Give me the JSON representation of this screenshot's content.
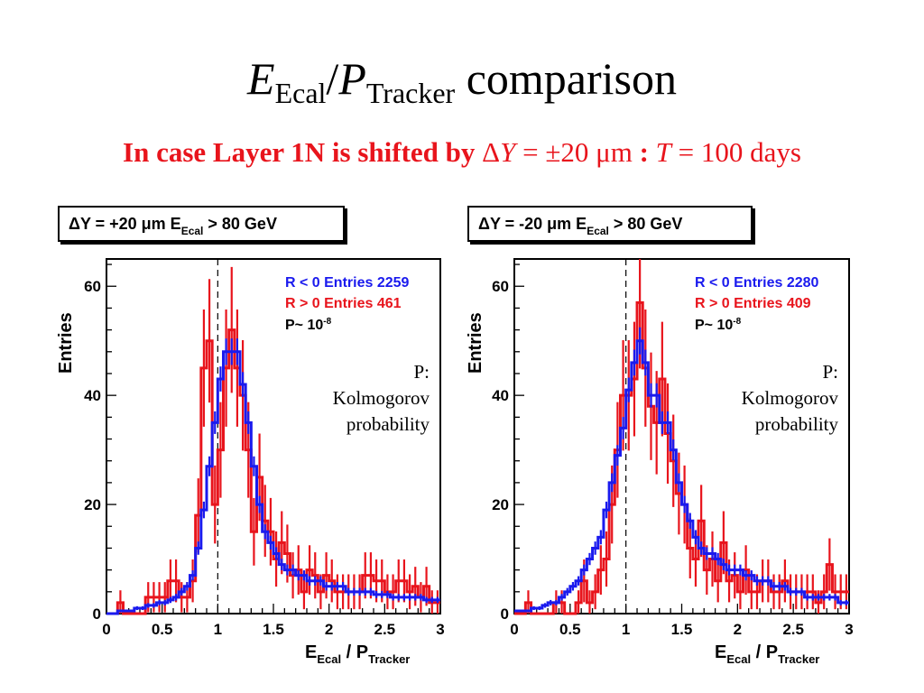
{
  "slide": {
    "title_e": "E",
    "title_e_sub": "Ecal",
    "title_slash": "/",
    "title_p": "P",
    "title_p_sub": "Tracker",
    "title_rest": " comparison",
    "subtitle_a": "In case Layer 1N is shifted by ",
    "subtitle_delta": "Δ",
    "subtitle_y": "Y",
    "subtitle_mid": " = ±20 μm",
    "subtitle_colon": " : ",
    "subtitle_t": "T",
    "subtitle_end": " = 100 days"
  },
  "colors": {
    "blue": "#1a1aee",
    "red": "#e8141c",
    "title_red": "#e8141c"
  },
  "panels": [
    {
      "header_a": "ΔY = +20 μm  E",
      "header_sub": "Ecal",
      "header_b": " > 80 GeV",
      "legend_blue": "R < 0 Entries 2259",
      "legend_red": "R > 0 Entries 461",
      "legend_p": "P~ 10",
      "legend_p_exp": "-8",
      "note_1": "P:",
      "note_2": "Kolmogorov",
      "note_3": "probability"
    },
    {
      "header_a": "ΔY = -20 μm  E",
      "header_sub": "Ecal",
      "header_b": " > 80 GeV",
      "legend_blue": "R < 0 Entries 2280",
      "legend_red": "R > 0 Entries 409",
      "legend_p": "P~ 10",
      "legend_p_exp": "-8",
      "note_1": "P:",
      "note_2": "Kolmogorov",
      "note_3": "probability"
    }
  ],
  "axis_labels": {
    "ylabel": "Entries",
    "xlabel_e": "E",
    "xlabel_e_sub": "Ecal",
    "xlabel_mid": " / P",
    "xlabel_p_sub": "Tracker"
  },
  "chart_data": [
    {
      "type": "histogram",
      "xlim": [
        0,
        3
      ],
      "ylim": [
        0,
        65
      ],
      "xticks": [
        "0",
        "0.5",
        "1",
        "1.5",
        "2",
        "2.5",
        "3"
      ],
      "yticks": [
        "0",
        "20",
        "40",
        "60"
      ],
      "vline_x": 1.0,
      "bin_width": 0.05,
      "series": [
        {
          "name": "R < 0",
          "color": "blue",
          "values": [
            0,
            0,
            0.5,
            0.5,
            0.5,
            1,
            1,
            1.5,
            1.5,
            2,
            2,
            2.5,
            3,
            4,
            5,
            7,
            12,
            19,
            27,
            35,
            43,
            48,
            48,
            48,
            42,
            35,
            27,
            20,
            15,
            13,
            11,
            9,
            8,
            8,
            7,
            7,
            6,
            6,
            6,
            5,
            5,
            5,
            5,
            4,
            4,
            4,
            4,
            4,
            3.5,
            3.5,
            3.5,
            3,
            3,
            3,
            3,
            3,
            3,
            2.5,
            2.5,
            2.5
          ]
        },
        {
          "name": "R > 0",
          "color": "red",
          "values": [
            0,
            0,
            2,
            0,
            0,
            0,
            0,
            3,
            3,
            3,
            3,
            6,
            6,
            3,
            3,
            6,
            18,
            45,
            50,
            20,
            30,
            45,
            52,
            45,
            40,
            30,
            15,
            25,
            17,
            15,
            10,
            13,
            11,
            7,
            8,
            4,
            8,
            7,
            4,
            7,
            6,
            4,
            4,
            4,
            4,
            4,
            7,
            7,
            6,
            6,
            4,
            4,
            6,
            6,
            4,
            5,
            3,
            5,
            2,
            2
          ]
        }
      ]
    },
    {
      "type": "histogram",
      "xlim": [
        0,
        3
      ],
      "ylim": [
        0,
        65
      ],
      "xticks": [
        "0",
        "0.5",
        "1",
        "1.5",
        "2",
        "2.5",
        "3"
      ],
      "yticks": [
        "0",
        "20",
        "40",
        "60"
      ],
      "vline_x": 1.0,
      "bin_width": 0.05,
      "series": [
        {
          "name": "R < 0",
          "color": "blue",
          "values": [
            0.5,
            0.5,
            0.5,
            1,
            1,
            1.5,
            2,
            2,
            3,
            4,
            5,
            6,
            8,
            10,
            12,
            14,
            19,
            24,
            29,
            34,
            41,
            46,
            50,
            46,
            40,
            40,
            35,
            35,
            30,
            24,
            20,
            17,
            14,
            12,
            11,
            11,
            10,
            9,
            8,
            8,
            8,
            7,
            7,
            6,
            6,
            6,
            5,
            5,
            5,
            4,
            4,
            4,
            3,
            3,
            3,
            3,
            3,
            3,
            2,
            2
          ]
        },
        {
          "name": "R > 0",
          "color": "red",
          "values": [
            0,
            0,
            2,
            0,
            0,
            0,
            0,
            2,
            2,
            0,
            0,
            2,
            6,
            2,
            4,
            8,
            10,
            20,
            30,
            40,
            40,
            43,
            57,
            45,
            38,
            35,
            43,
            33,
            28,
            22,
            20,
            12,
            10,
            17,
            8,
            10,
            6,
            13,
            6,
            7,
            4,
            8,
            4,
            4,
            6,
            6,
            4,
            4,
            6,
            4,
            4,
            4,
            4,
            4,
            2,
            4,
            9,
            4,
            4,
            4
          ]
        }
      ]
    }
  ]
}
